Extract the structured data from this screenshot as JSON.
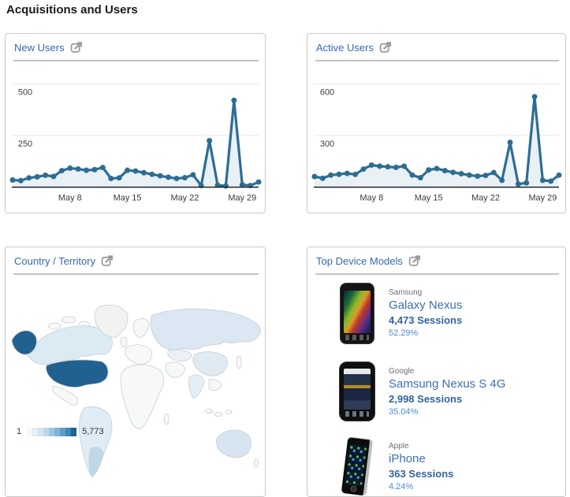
{
  "page": {
    "title": "Acquisitions and Users"
  },
  "panels": {
    "new_users": {
      "title": "New Users"
    },
    "active_users": {
      "title": "Active Users"
    },
    "country": {
      "title": "Country / Territory",
      "legend": {
        "min": "1",
        "max": "5,773",
        "swatches": [
          "#f3f8fb",
          "#e4eef6",
          "#d2e4f1",
          "#bcd7ea",
          "#a0c7e2",
          "#81b4d8",
          "#5f9eca",
          "#3f88ba",
          "#20618f"
        ]
      }
    },
    "devices": {
      "title": "Top Device Models",
      "items": [
        {
          "brand": "Samsung",
          "model": "Galaxy Nexus",
          "sessions": "4,473 Sessions",
          "percent": "52.29%"
        },
        {
          "brand": "Google",
          "model": "Samsung Nexus S 4G",
          "sessions": "2,998 Sessions",
          "percent": "35.04%"
        },
        {
          "brand": "Apple",
          "model": "iPhone",
          "sessions": "363 Sessions",
          "percent": "4.24%"
        }
      ]
    }
  },
  "chart_data": [
    {
      "name": "new_users",
      "type": "line",
      "title": "New Users",
      "x_start": "May 1",
      "x_step_days": 1,
      "x_tick_labels": [
        "May 8",
        "May 15",
        "May 22",
        "May 29"
      ],
      "x_tick_indices": [
        7,
        14,
        21,
        28
      ],
      "values": [
        35,
        32,
        45,
        50,
        58,
        52,
        80,
        92,
        88,
        82,
        85,
        95,
        42,
        45,
        82,
        78,
        70,
        62,
        55,
        48,
        42,
        46,
        60,
        8,
        225,
        10,
        6,
        420,
        12,
        8,
        25
      ],
      "gridlines": [
        250,
        500
      ],
      "ylim": [
        0,
        550
      ],
      "line_color": "#2d6d92",
      "area_color": "#e9f0f6",
      "grid_color": "#e7e7e7",
      "axis_color": "#222222",
      "label_color": "#3a3a3a"
    },
    {
      "name": "active_users",
      "type": "line",
      "title": "Active Users",
      "x_start": "May 1",
      "x_step_days": 1,
      "x_tick_labels": [
        "May 8",
        "May 15",
        "May 22",
        "May 29"
      ],
      "x_tick_indices": [
        7,
        14,
        21,
        28
      ],
      "values": [
        62,
        52,
        70,
        75,
        80,
        74,
        105,
        128,
        122,
        118,
        115,
        122,
        70,
        55,
        100,
        108,
        96,
        86,
        78,
        70,
        64,
        68,
        85,
        40,
        260,
        18,
        25,
        525,
        40,
        35,
        70
      ],
      "gridlines": [
        300,
        600
      ],
      "ylim": [
        0,
        660
      ],
      "line_color": "#2d6d92",
      "area_color": "#e9f0f6",
      "grid_color": "#e7e7e7",
      "axis_color": "#222222",
      "label_color": "#3a3a3a"
    }
  ],
  "map": {
    "regions": {
      "united-states": "#20618f",
      "alaska": "#20618f",
      "canada": "#dceaf4",
      "russia": "#dbe7f2",
      "brazil": "#e0ecf5",
      "argentina": "#bed8ea",
      "australia": "#d7e5f1",
      "china": "#e0eaf3",
      "india": "#e6eef5",
      "kazakhstan": "#eaf0f5",
      "greenland": "#f1f2f2",
      "default": "#f7f8f8",
      "stroke": "#c9ced2"
    }
  },
  "colors": {
    "panel_title": "#3468b1",
    "heading": "#1a1a1a",
    "line": "#2d6d92",
    "us_highlight": "#20618f"
  }
}
